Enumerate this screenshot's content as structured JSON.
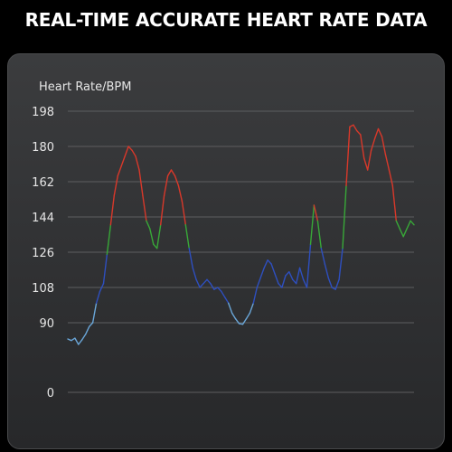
{
  "header": {
    "title": "REAL-TIME ACCURATE HEART RATE DATA"
  },
  "chart_data": {
    "type": "line",
    "title": "",
    "ylabel": "Heart Rate/BPM",
    "xlabel": "",
    "yticks": [
      0,
      90,
      108,
      126,
      144,
      162,
      180,
      198
    ],
    "grid": true,
    "legend": "none",
    "zones": [
      {
        "name": "resting",
        "color": "#6aa6d8",
        "below": 100
      },
      {
        "name": "fat-burn",
        "color": "#2e4fbf",
        "below": 129
      },
      {
        "name": "cardio",
        "color": "#38a838",
        "below": 145
      },
      {
        "name": "peak",
        "color": "#d8382a",
        "below": 999
      }
    ],
    "series": [
      {
        "values": [
          69,
          67,
          70,
          62,
          68,
          75,
          85,
          90,
          100,
          106,
          110,
          125,
          140,
          155,
          165,
          170,
          175,
          180,
          178,
          175,
          168,
          155,
          142,
          138,
          130,
          128,
          140,
          155,
          165,
          168,
          165,
          160,
          152,
          140,
          128,
          118,
          112,
          108,
          110,
          112,
          110,
          107,
          108,
          106,
          103,
          100,
          95,
          92,
          89,
          88,
          92,
          95,
          100,
          108,
          113,
          118,
          122,
          120,
          115,
          110,
          108,
          114,
          116,
          112,
          110,
          118,
          112,
          108,
          130,
          150,
          142,
          128,
          120,
          113,
          108,
          107,
          112,
          128,
          160,
          190,
          191,
          188,
          186,
          174,
          168,
          178,
          184,
          189,
          185,
          176,
          168,
          160,
          142,
          138,
          134,
          138,
          142,
          140
        ]
      }
    ]
  }
}
